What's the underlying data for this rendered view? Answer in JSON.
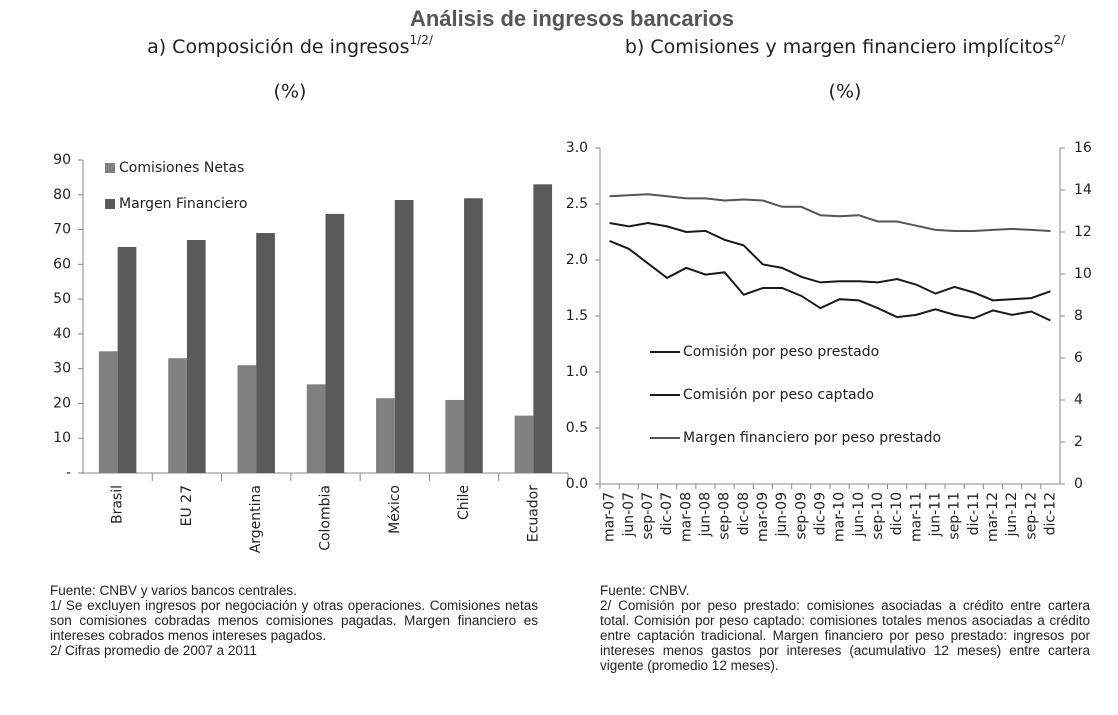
{
  "title": "Análisis de ingresos bancarios",
  "chart_data": [
    {
      "type": "bar",
      "title": "a) Composición de ingresos",
      "title_superscript": "1/2/",
      "subtitle": "(%)",
      "categories": [
        "Brasil",
        "EU 27",
        "Argentina",
        "Colombia",
        "México",
        "Chile",
        "Ecuador"
      ],
      "series": [
        {
          "name": "Comisiones Netas",
          "color": "#808080",
          "values": [
            35,
            33,
            31,
            25.5,
            21.5,
            21,
            16.5
          ]
        },
        {
          "name": "Margen Financiero",
          "color": "#5a5a5a",
          "values": [
            65,
            67,
            69,
            74.5,
            78.5,
            79,
            83
          ]
        }
      ],
      "ylim": [
        0,
        90
      ],
      "yticks": [
        {
          "value": 0,
          "label": "-"
        },
        10,
        20,
        30,
        40,
        50,
        60,
        70,
        80,
        90
      ],
      "grid": false,
      "legend": "top-left",
      "notes": [
        "Fuente: CNBV y varios bancos centrales.",
        "1/ Se excluyen ingresos por negociación y otras operaciones. Comisiones netas son comisiones cobradas menos comisiones pagadas. Margen financiero es intereses cobrados menos intereses pagados.",
        "2/ Cifras promedio de 2007 a 2011"
      ]
    },
    {
      "type": "line",
      "title": "b) Comisiones y margen financiero implícitos",
      "title_superscript": "2/",
      "subtitle": "(%)",
      "categories": [
        "mar-07",
        "jun-07",
        "sep-07",
        "dic-07",
        "mar-08",
        "jun-08",
        "sep-08",
        "dic-08",
        "mar-09",
        "jun-09",
        "sep-09",
        "dic-09",
        "mar-10",
        "jun-10",
        "sep-10",
        "dic-10",
        "mar-11",
        "jun-11",
        "sep-11",
        "dic-11",
        "mar-12",
        "jun-12",
        "sep-12",
        "dic-12"
      ],
      "series": [
        {
          "name": "Comisión por peso prestado",
          "color": "#1a1a1a",
          "values": [
            2.33,
            2.3,
            2.33,
            2.3,
            2.25,
            2.26,
            2.18,
            2.13,
            1.96,
            1.93,
            1.85,
            1.8,
            1.81,
            1.81,
            1.8,
            1.83,
            1.78,
            1.7,
            1.76,
            1.71,
            1.64,
            1.65,
            1.66,
            1.72
          ]
        },
        {
          "name": "Comisión por peso captado",
          "color": "#1a1a1a",
          "values": [
            2.17,
            2.1,
            1.97,
            1.84,
            1.93,
            1.87,
            1.89,
            1.69,
            1.75,
            1.75,
            1.68,
            1.57,
            1.65,
            1.64,
            1.57,
            1.49,
            1.51,
            1.56,
            1.51,
            1.48,
            1.55,
            1.51,
            1.54,
            1.46
          ]
        },
        {
          "name": "Margen financiero por peso prestado",
          "color": "#555555",
          "axis": "y2",
          "values": [
            13.7,
            13.75,
            13.8,
            13.7,
            13.6,
            13.6,
            13.5,
            13.55,
            13.5,
            13.2,
            13.2,
            12.8,
            12.75,
            12.8,
            12.5,
            12.5,
            12.3,
            12.1,
            12.05,
            12.05,
            12.1,
            12.15,
            12.1,
            12.05
          ]
        }
      ],
      "ylim": [
        0,
        3
      ],
      "yticks": [
        {
          "value": 0,
          "label": "0.0"
        },
        0.5,
        {
          "value": 1,
          "label": "1.0"
        },
        1.5,
        {
          "value": 2,
          "label": "2.0"
        },
        2.5,
        {
          "value": 3,
          "label": "3.0"
        }
      ],
      "y2lim": [
        0,
        16
      ],
      "y2ticks": [
        0,
        2,
        4,
        6,
        8,
        10,
        12,
        14,
        16
      ],
      "grid": false,
      "legend": "bottom-left",
      "notes": [
        "Fuente: CNBV.",
        "2/ Comisión por peso prestado: comisiones asociadas a crédito entre cartera total. Comisión por peso captado: comisiones totales menos asociadas a crédito entre captación tradicional. Margen financiero por peso prestado: ingresos por intereses menos gastos por intereses (acumulativo 12 meses) entre cartera vigente (promedio 12 meses)."
      ]
    }
  ]
}
